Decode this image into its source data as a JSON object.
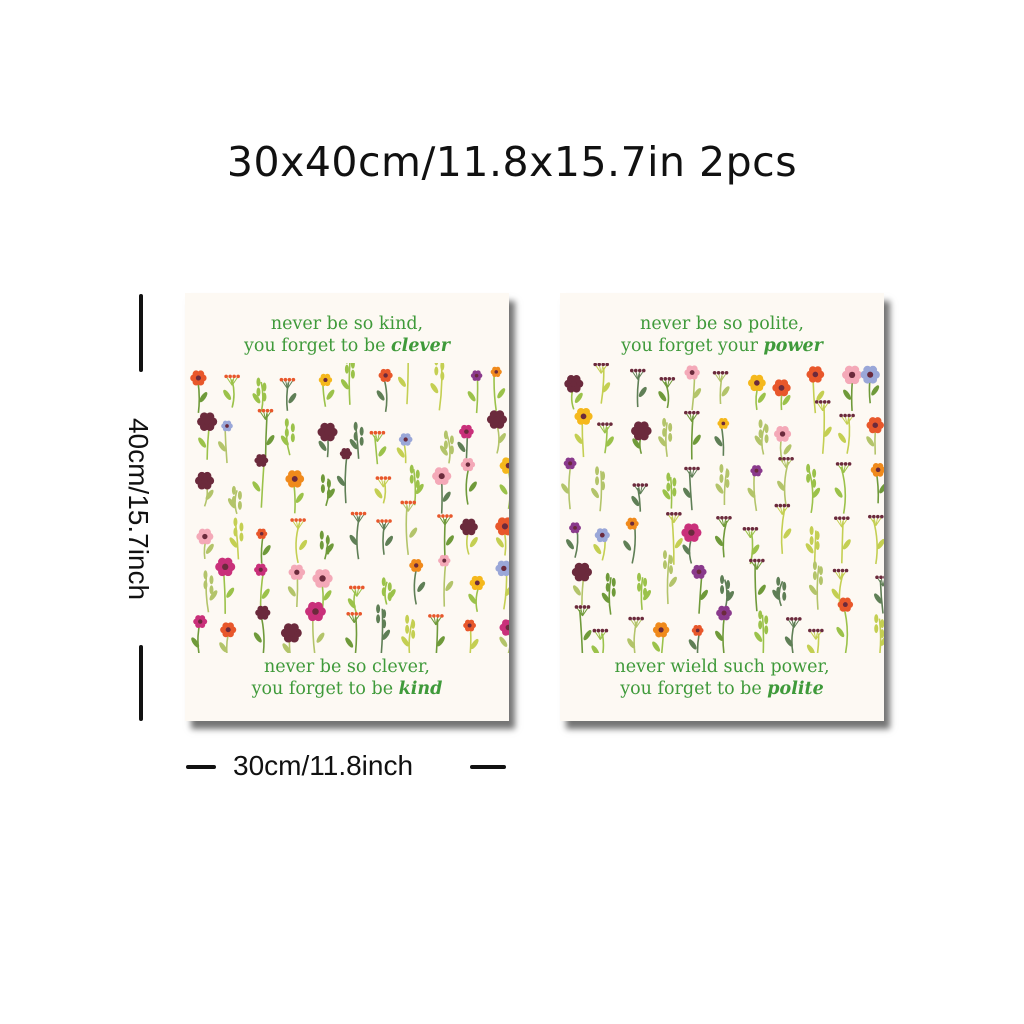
{
  "headline": "30x40cm/11.8x15.7in 2pcs",
  "dimensions": {
    "height_label": "40cm/15.7inch",
    "width_label": "30cm/11.8inch"
  },
  "posters": [
    {
      "top_quote": {
        "line1": "never be so kind,",
        "line2_prefix": "you forget to be ",
        "line2_emphasis": "clever"
      },
      "bottom_quote": {
        "line1": "never be so clever,",
        "line2_prefix": "you forget to be ",
        "line2_emphasis": "kind"
      }
    },
    {
      "top_quote": {
        "line1": "never be so polite,",
        "line2_prefix": "you forget your ",
        "line2_emphasis": "power"
      },
      "bottom_quote": {
        "line1": "never wield such power,",
        "line2_prefix": "you forget to be ",
        "line2_emphasis": "polite"
      }
    }
  ],
  "colors": {
    "quote_text": "#3f9a3a",
    "poster_background": "#fdf9f3",
    "flower_palette": [
      "#f5b81c",
      "#e8572b",
      "#c9307a",
      "#8a3a8c",
      "#f4a9b8",
      "#9aa7d8",
      "#6b2a3c",
      "#f08a1c"
    ],
    "leaf_palette": [
      "#9bc24a",
      "#6f9a3a",
      "#c4cf52",
      "#5f7f56",
      "#b3c46a"
    ]
  }
}
